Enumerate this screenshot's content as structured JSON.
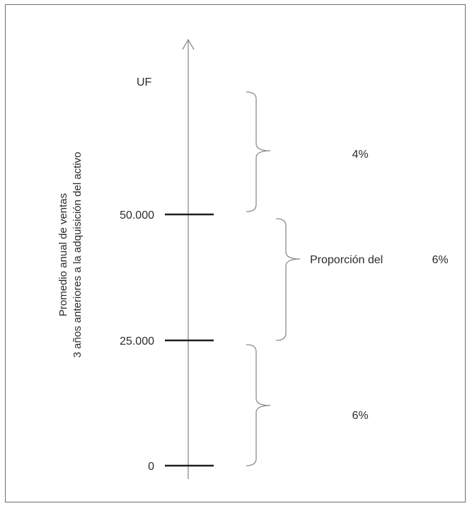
{
  "axis": {
    "unit": "UF",
    "title_line1": "Promedio anual de ventas",
    "title_line2": "3 años anteriores a la adquisición del activo"
  },
  "ticks": [
    {
      "value": 0,
      "label": "0"
    },
    {
      "value": 25000,
      "label": "25.000"
    },
    {
      "value": 50000,
      "label": "50.000"
    }
  ],
  "ranges": [
    {
      "label": "6%"
    },
    {
      "label": "Proporción del",
      "rate": "6%"
    },
    {
      "label": "4%"
    }
  ]
}
